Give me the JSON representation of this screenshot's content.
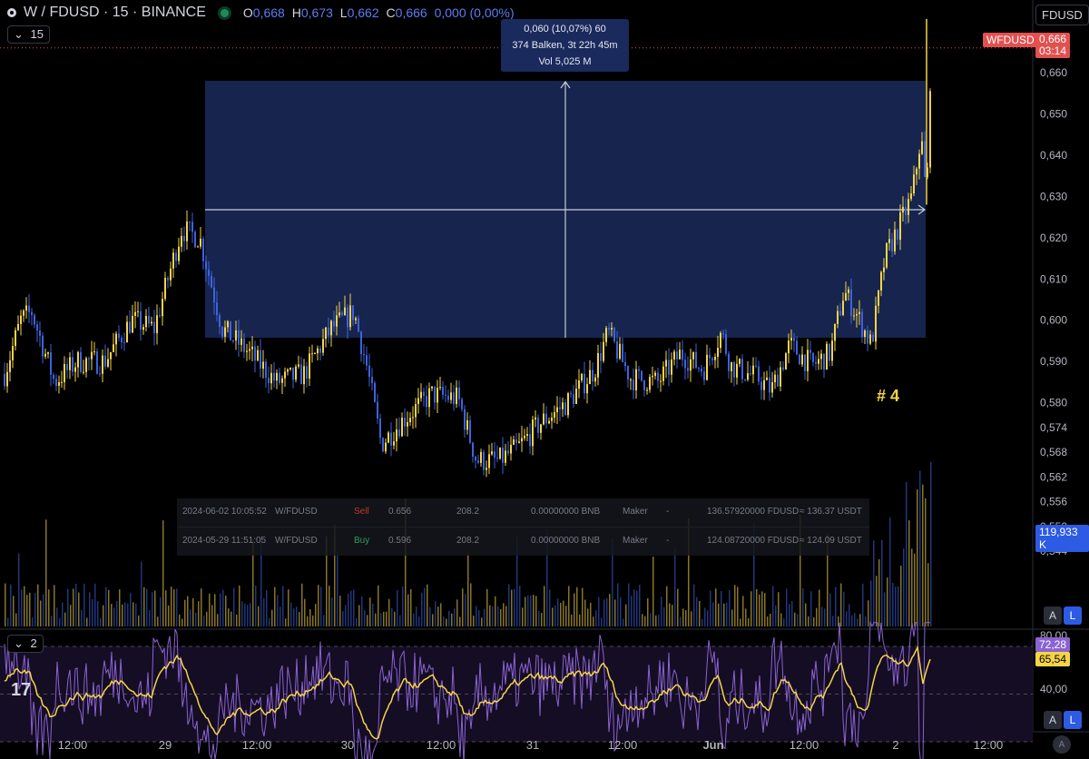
{
  "header": {
    "symbol": "W / FDUSD · 15 · BINANCE",
    "o_label": "O",
    "o_value": "0,668",
    "h_label": "H",
    "h_value": "0,673",
    "l_label": "L",
    "l_value": "0,662",
    "c_label": "C",
    "c_value": "0,666",
    "change": "0,000 (0,00%)"
  },
  "interval_pill": "15",
  "indicator_pill": "2",
  "currency_button": "FDUSD",
  "price_badge": {
    "symbol": "WFDUSD",
    "price": "0,666",
    "countdown": "03:14"
  },
  "volume_badge": "119,933 K",
  "rsi_badges": {
    "upper": "72,28",
    "lower": "65,54"
  },
  "buttons": {
    "auto": "A",
    "log": "L"
  },
  "measure_tooltip": {
    "line1": "0,060 (10,07%) 60",
    "line2": "374 Balken, 3t 22h 45m",
    "line3": "Vol 5,025 M"
  },
  "annotation": "# 4",
  "trades": [
    {
      "date": "2024-06-02 10:05:52",
      "pair": "W/FDUSD",
      "side": "Sell",
      "price": "0.656",
      "qty": "208.2",
      "fee": "0.00000000 BNB",
      "role": "Maker",
      "dash": "-",
      "total": "136.57920000 FDUSD",
      "usdt": "≈ 136.37 USDT"
    },
    {
      "date": "2024-05-29 11:51:05",
      "pair": "W/FDUSD",
      "side": "Buy",
      "price": "0.596",
      "qty": "208.2",
      "fee": "0.00000000 BNB",
      "role": "Maker",
      "dash": "-",
      "total": "124.08720000 FDUSD",
      "usdt": "≈ 124.09 USDT"
    }
  ],
  "colors": {
    "up": "#f5d547",
    "down": "#3d63e0",
    "rsi": "#8a63d2",
    "rsi_ma": "#f5d547",
    "sell": "#c0392b",
    "buy": "#2e9e5b",
    "price_badge": "#e25050",
    "volume_badge": "#2d5be3",
    "box": "#1a2a5c"
  },
  "chart_data": {
    "type": "candlestick",
    "symbol": "W / FDUSD",
    "exchange": "BINANCE",
    "interval": "15",
    "price_axis_ticks": [
      "0,660",
      "0,650",
      "0,640",
      "0,630",
      "0,620",
      "0,610",
      "0,600",
      "0,590",
      "0,580",
      "0,574",
      "0,568",
      "0,562",
      "0,556",
      "0,550",
      "0,544"
    ],
    "time_axis_ticks": [
      "12:00",
      "29",
      "12:00",
      "30",
      "12:00",
      "31",
      "12:00",
      "Jun",
      "12:00",
      "2",
      "12:00"
    ],
    "rsi_axis_ticks": [
      "80,00",
      "40,00"
    ],
    "last_price": 0.666,
    "price_anchors": [
      {
        "t": 0,
        "p": 0.587
      },
      {
        "t": 18,
        "p": 0.6
      },
      {
        "t": 30,
        "p": 0.602
      },
      {
        "t": 55,
        "p": 0.585
      },
      {
        "t": 80,
        "p": 0.59
      },
      {
        "t": 110,
        "p": 0.59
      },
      {
        "t": 140,
        "p": 0.6
      },
      {
        "t": 165,
        "p": 0.598
      },
      {
        "t": 195,
        "p": 0.622
      },
      {
        "t": 215,
        "p": 0.62
      },
      {
        "t": 240,
        "p": 0.598
      },
      {
        "t": 270,
        "p": 0.592
      },
      {
        "t": 300,
        "p": 0.585
      },
      {
        "t": 330,
        "p": 0.587
      },
      {
        "t": 360,
        "p": 0.598
      },
      {
        "t": 385,
        "p": 0.602
      },
      {
        "t": 400,
        "p": 0.588
      },
      {
        "t": 415,
        "p": 0.57
      },
      {
        "t": 440,
        "p": 0.576
      },
      {
        "t": 470,
        "p": 0.582
      },
      {
        "t": 500,
        "p": 0.581
      },
      {
        "t": 520,
        "p": 0.566
      },
      {
        "t": 545,
        "p": 0.566
      },
      {
        "t": 565,
        "p": 0.569
      },
      {
        "t": 590,
        "p": 0.575
      },
      {
        "t": 620,
        "p": 0.58
      },
      {
        "t": 650,
        "p": 0.588
      },
      {
        "t": 665,
        "p": 0.597
      },
      {
        "t": 690,
        "p": 0.586
      },
      {
        "t": 720,
        "p": 0.585
      },
      {
        "t": 745,
        "p": 0.592
      },
      {
        "t": 770,
        "p": 0.588
      },
      {
        "t": 790,
        "p": 0.597
      },
      {
        "t": 800,
        "p": 0.589
      },
      {
        "t": 830,
        "p": 0.586
      },
      {
        "t": 845,
        "p": 0.583
      },
      {
        "t": 865,
        "p": 0.594
      },
      {
        "t": 890,
        "p": 0.589
      },
      {
        "t": 910,
        "p": 0.592
      },
      {
        "t": 925,
        "p": 0.607
      },
      {
        "t": 940,
        "p": 0.601
      },
      {
        "t": 955,
        "p": 0.594
      },
      {
        "t": 970,
        "p": 0.615
      },
      {
        "t": 990,
        "p": 0.625
      },
      {
        "t": 1000,
        "p": 0.63
      },
      {
        "t": 1010,
        "p": 0.645
      },
      {
        "t": 1016,
        "p": 0.628
      },
      {
        "t": 1021,
        "p": 0.666
      }
    ],
    "measure": {
      "from_price": 0.596,
      "to_price": 0.656,
      "change": "0,060 (10,07%) 60",
      "bars": 374,
      "duration": "3t 22h 45m",
      "volume": "5,025 M"
    },
    "rsi": {
      "length": 2,
      "current": 72.28,
      "ma": 65.54,
      "upper_band": 80,
      "lower_band": 20
    }
  }
}
